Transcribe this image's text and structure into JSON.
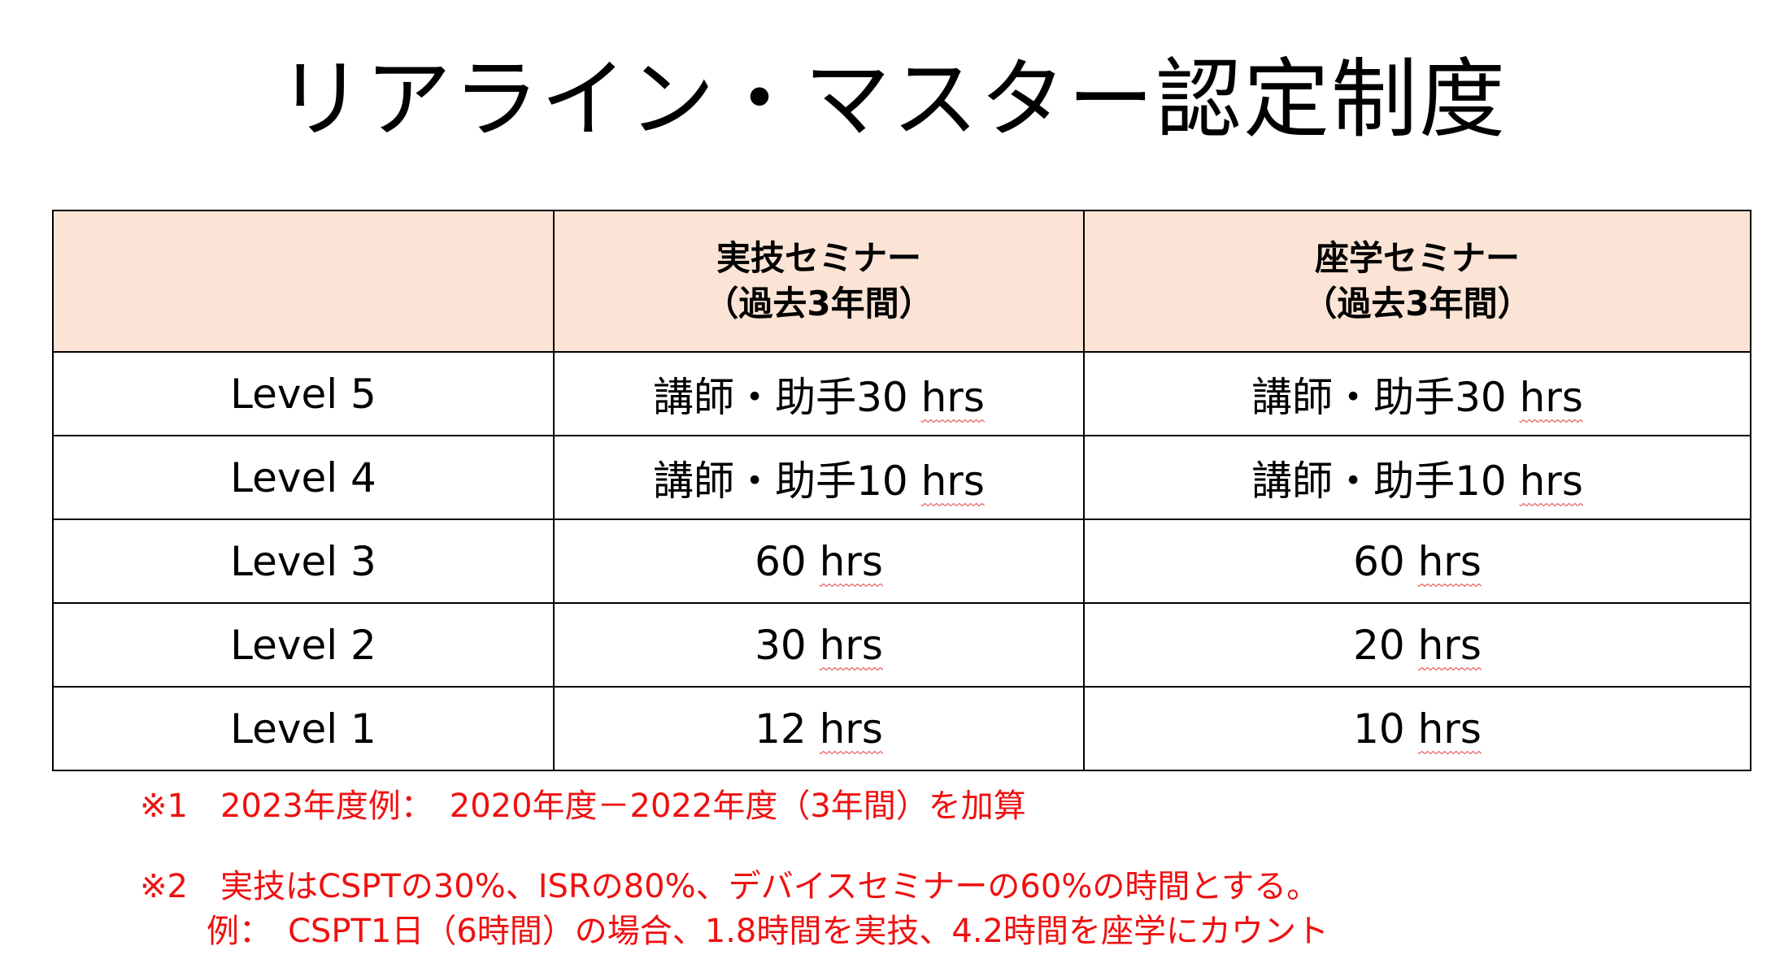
{
  "title": "リアライン・マスター認定制度",
  "table": {
    "headers": [
      {
        "line1": "",
        "line2": ""
      },
      {
        "line1": "実技セミナー",
        "line2": "（過去3年間）"
      },
      {
        "line1": "座学セミナー",
        "line2": "（過去3年間）"
      }
    ],
    "rows": [
      {
        "level": "Level 5",
        "practical": {
          "value": "講師・助手30",
          "unit": "hrs"
        },
        "lecture": {
          "value": "講師・助手30",
          "unit": "hrs"
        }
      },
      {
        "level": "Level 4",
        "practical": {
          "value": "講師・助手10",
          "unit": "hrs"
        },
        "lecture": {
          "value": "講師・助手10",
          "unit": "hrs"
        }
      },
      {
        "level": "Level 3",
        "practical": {
          "value": "60",
          "unit": "hrs"
        },
        "lecture": {
          "value": "60",
          "unit": "hrs"
        }
      },
      {
        "level": "Level 2",
        "practical": {
          "value": "30",
          "unit": "hrs"
        },
        "lecture": {
          "value": "20",
          "unit": "hrs"
        }
      },
      {
        "level": "Level 1",
        "practical": {
          "value": "12",
          "unit": "hrs"
        },
        "lecture": {
          "value": "10",
          "unit": "hrs"
        }
      }
    ]
  },
  "notes": {
    "note1": "※1　2023年度例：　2020年度－2022年度（3年間）を加算",
    "note2_line1": "※2　実技はCSPTの30%、ISRの80%、デバイスセミナーの60%の時間とする。",
    "note2_line2": "　例：　CSPT1日（6時間）の場合、1.8時間を実技、4.2時間を座学にカウント"
  },
  "colors": {
    "header_bg": "#fbe4d5",
    "note_text": "#ee1111",
    "spellcheck_underline": "#e03030"
  }
}
